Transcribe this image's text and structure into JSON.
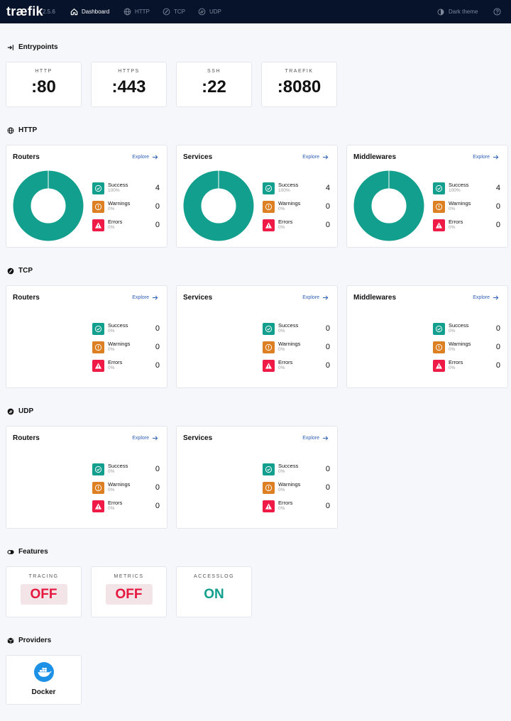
{
  "app": {
    "logo": "træfik",
    "version": "2.5.6"
  },
  "nav": {
    "items": [
      {
        "label": "Dashboard"
      },
      {
        "label": "HTTP"
      },
      {
        "label": "TCP"
      },
      {
        "label": "UDP"
      }
    ],
    "theme_label": "Dark theme"
  },
  "colors": {
    "success": "#139f8d",
    "warning": "#dd7f23",
    "error": "#ef1a45",
    "nav_bg": "#06132b",
    "link": "#2f5fb4"
  },
  "entrypoints": {
    "title": "Entrypoints",
    "items": [
      {
        "name": "HTTP",
        "address": ":80"
      },
      {
        "name": "HTTPS",
        "address": ":443"
      },
      {
        "name": "SSH",
        "address": ":22"
      },
      {
        "name": "TRAEFIK",
        "address": ":8080"
      }
    ]
  },
  "stat_labels": {
    "success": "Success",
    "warnings": "Warnings",
    "errors": "Errors"
  },
  "explore_label": "Explore",
  "http": {
    "title": "HTTP",
    "cards": [
      {
        "title": "Routers",
        "success_pct": "100%",
        "success": 4,
        "warnings_pct": "0%",
        "warnings": 0,
        "errors_pct": "0%",
        "errors": 0
      },
      {
        "title": "Services",
        "success_pct": "100%",
        "success": 4,
        "warnings_pct": "0%",
        "warnings": 0,
        "errors_pct": "0%",
        "errors": 0
      },
      {
        "title": "Middlewares",
        "success_pct": "100%",
        "success": 4,
        "warnings_pct": "0%",
        "warnings": 0,
        "errors_pct": "0%",
        "errors": 0
      }
    ]
  },
  "tcp": {
    "title": "TCP",
    "cards": [
      {
        "title": "Routers",
        "success_pct": "0%",
        "success": 0,
        "warnings_pct": "0%",
        "warnings": 0,
        "errors_pct": "0%",
        "errors": 0
      },
      {
        "title": "Services",
        "success_pct": "0%",
        "success": 0,
        "warnings_pct": "0%",
        "warnings": 0,
        "errors_pct": "0%",
        "errors": 0
      },
      {
        "title": "Middlewares",
        "success_pct": "0%",
        "success": 0,
        "warnings_pct": "0%",
        "warnings": 0,
        "errors_pct": "0%",
        "errors": 0
      }
    ]
  },
  "udp": {
    "title": "UDP",
    "cards": [
      {
        "title": "Routers",
        "success_pct": "0%",
        "success": 0,
        "warnings_pct": "0%",
        "warnings": 0,
        "errors_pct": "0%",
        "errors": 0
      },
      {
        "title": "Services",
        "success_pct": "0%",
        "success": 0,
        "warnings_pct": "0%",
        "warnings": 0,
        "errors_pct": "0%",
        "errors": 0
      }
    ]
  },
  "features": {
    "title": "Features",
    "items": [
      {
        "name": "TRACING",
        "value": "OFF"
      },
      {
        "name": "METRICS",
        "value": "OFF"
      },
      {
        "name": "ACCESSLOG",
        "value": "ON"
      }
    ]
  },
  "providers": {
    "title": "Providers",
    "items": [
      {
        "name": "Docker",
        "icon": "docker-whale-icon"
      }
    ]
  }
}
